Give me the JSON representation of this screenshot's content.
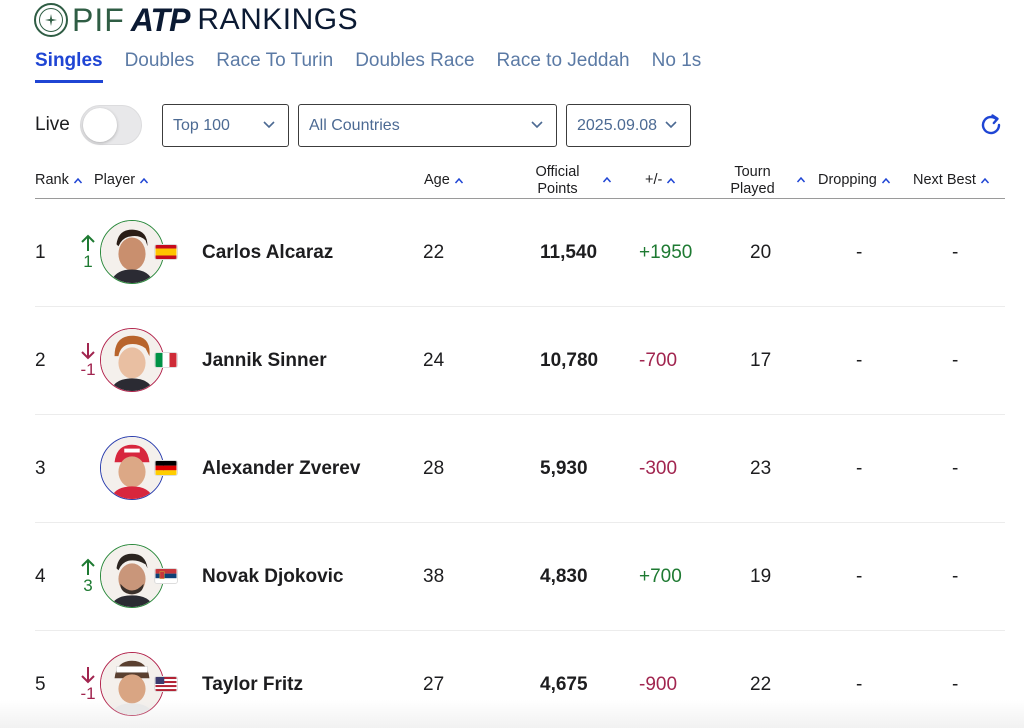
{
  "brand": {
    "pif": "PIF",
    "atp": "ATP",
    "rankings": "RANKINGS"
  },
  "tabs": [
    {
      "label": "Singles",
      "active": true
    },
    {
      "label": "Doubles"
    },
    {
      "label": "Race To Turin"
    },
    {
      "label": "Doubles Race"
    },
    {
      "label": "Race to Jeddah"
    },
    {
      "label": "No 1s"
    }
  ],
  "filters": {
    "live_label": "Live",
    "live_on": false,
    "range": "Top 100",
    "country": "All Countries",
    "date": "2025.09.08"
  },
  "columns": {
    "rank": "Rank",
    "player": "Player",
    "age": "Age",
    "points_line1": "Official",
    "points_line2": "Points",
    "plusminus": "+/-",
    "played_line1": "Tourn",
    "played_line2": "Played",
    "dropping": "Dropping",
    "nextbest": "Next Best"
  },
  "rows": [
    {
      "rank": "1",
      "move": "1",
      "move_dir": "up",
      "name": "Carlos Alcaraz",
      "country_flag": "spain-flag",
      "age": "22",
      "points": "11,540",
      "plusminus": "+1950",
      "pm_dir": "pos",
      "played": "20",
      "dropping": "-",
      "nextbest": "-"
    },
    {
      "rank": "2",
      "move": "-1",
      "move_dir": "down",
      "name": "Jannik Sinner",
      "country_flag": "italy-flag",
      "age": "24",
      "points": "10,780",
      "plusminus": "-700",
      "pm_dir": "neg",
      "played": "17",
      "dropping": "-",
      "nextbest": "-"
    },
    {
      "rank": "3",
      "move": "",
      "move_dir": "none",
      "name": "Alexander Zverev",
      "country_flag": "germany-flag",
      "age": "28",
      "points": "5,930",
      "plusminus": "-300",
      "pm_dir": "neg",
      "played": "23",
      "dropping": "-",
      "nextbest": "-"
    },
    {
      "rank": "4",
      "move": "3",
      "move_dir": "up",
      "name": "Novak Djokovic",
      "country_flag": "serbia-flag",
      "age": "38",
      "points": "4,830",
      "plusminus": "+700",
      "pm_dir": "pos",
      "played": "19",
      "dropping": "-",
      "nextbest": "-"
    },
    {
      "rank": "5",
      "move": "-1",
      "move_dir": "down",
      "name": "Taylor Fritz",
      "country_flag": "usa-flag",
      "age": "27",
      "points": "4,675",
      "plusminus": "-900",
      "pm_dir": "neg",
      "played": "22",
      "dropping": "-",
      "nextbest": "-"
    }
  ],
  "colors": {
    "accent": "#1f45d4",
    "tab_inactive": "#5b7aa5",
    "up": "#1e7a32",
    "down": "#a1254f"
  }
}
